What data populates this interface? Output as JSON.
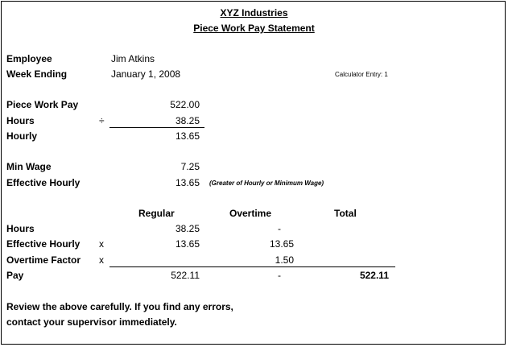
{
  "header": {
    "company": "XYZ Industries",
    "title": "Piece Work Pay Statement"
  },
  "info": {
    "employee_label": "Employee",
    "employee_value": "Jim Atkins",
    "week_label": "Week Ending",
    "week_value": "January 1, 2008",
    "calculator_entry": "Calculator Entry: 1"
  },
  "calc": {
    "piece_pay_label": "Piece Work Pay",
    "piece_pay_value": "522.00",
    "hours_label": "Hours",
    "divide_symbol": "÷",
    "hours_value": "38.25",
    "hourly_label": "Hourly",
    "hourly_value": "13.65",
    "min_wage_label": "Min Wage",
    "min_wage_value": "7.25",
    "eff_hourly_label": "Effective Hourly",
    "eff_hourly_value": "13.65",
    "eff_note": "(Greater of Hourly or Minimum Wage)"
  },
  "table": {
    "headers": {
      "regular": "Regular",
      "overtime": "Overtime",
      "total": "Total"
    },
    "rows": [
      {
        "label": "Hours",
        "op": "",
        "regular": "38.25",
        "overtime": "-",
        "total": ""
      },
      {
        "label": "Effective Hourly",
        "op": "x",
        "regular": "13.65",
        "overtime": "13.65",
        "total": ""
      },
      {
        "label": "Overtime Factor",
        "op": "x",
        "regular": "",
        "overtime": "1.50",
        "total": ""
      },
      {
        "label": "Pay",
        "op": "",
        "regular": "522.11",
        "overtime": "-",
        "total": "522.11"
      }
    ]
  },
  "footer": {
    "line1": "Review the above carefully.  If you find any errors,",
    "line2": "contact your supervisor immediately."
  }
}
